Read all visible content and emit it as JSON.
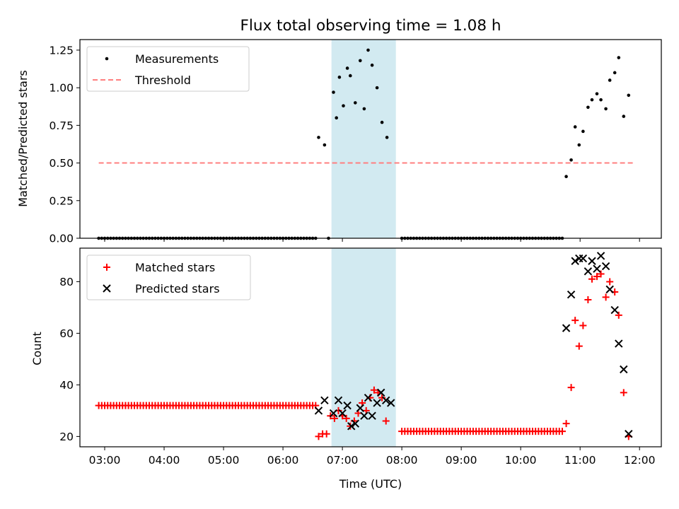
{
  "figure": {
    "title": "Flux total observing time = 1.08 h",
    "xlabel": "Time (UTC)",
    "x_ticks": [
      "03:00",
      "04:00",
      "05:00",
      "06:00",
      "07:00",
      "08:00",
      "09:00",
      "10:00",
      "11:00",
      "12:00"
    ],
    "highlight_color": "#add8e6"
  },
  "chart_data": [
    {
      "type": "scatter",
      "ylabel": "Matched/Predicted stars",
      "xlim": [
        "02:35",
        "12:22"
      ],
      "ylim": [
        0,
        1.32
      ],
      "y_ticks": [
        "0.00",
        "0.25",
        "0.50",
        "0.75",
        "1.00",
        "1.25"
      ],
      "shaded_interval": [
        "06:49",
        "07:54"
      ],
      "legend": {
        "location": "upper left",
        "entries": [
          "Measurements",
          "Threshold"
        ]
      },
      "threshold": {
        "name": "Threshold",
        "value": 0.5,
        "x_range": [
          "02:54",
          "11:54"
        ],
        "color": "#ff7f7f",
        "style": "dashed"
      },
      "series": [
        {
          "name": "Measurements",
          "color": "#000000",
          "marker": "dot",
          "zero_runs": [
            {
              "start": "02:54",
              "end": "06:33",
              "step_min": 3
            },
            {
              "start": "08:00",
              "end": "10:42",
              "step_min": 3
            }
          ],
          "points": [
            [
              "06:46",
              0.0
            ],
            [
              "06:36",
              0.67
            ],
            [
              "06:42",
              0.62
            ],
            [
              "06:51",
              0.97
            ],
            [
              "06:54",
              0.8
            ],
            [
              "06:57",
              1.07
            ],
            [
              "07:01",
              0.88
            ],
            [
              "07:05",
              1.13
            ],
            [
              "07:08",
              1.08
            ],
            [
              "07:13",
              0.9
            ],
            [
              "07:18",
              1.18
            ],
            [
              "07:22",
              0.86
            ],
            [
              "07:26",
              1.25
            ],
            [
              "07:30",
              1.15
            ],
            [
              "07:35",
              1.0
            ],
            [
              "07:40",
              0.77
            ],
            [
              "07:45",
              0.67
            ],
            [
              "10:46",
              0.41
            ],
            [
              "10:51",
              0.52
            ],
            [
              "10:55",
              0.74
            ],
            [
              "10:59",
              0.62
            ],
            [
              "11:03",
              0.71
            ],
            [
              "11:08",
              0.87
            ],
            [
              "11:12",
              0.92
            ],
            [
              "11:17",
              0.96
            ],
            [
              "11:21",
              0.92
            ],
            [
              "11:26",
              0.86
            ],
            [
              "11:30",
              1.05
            ],
            [
              "11:35",
              1.1
            ],
            [
              "11:39",
              1.2
            ],
            [
              "11:44",
              0.81
            ],
            [
              "11:49",
              0.95
            ]
          ]
        }
      ]
    },
    {
      "type": "scatter",
      "ylabel": "Count",
      "xlim": [
        "02:35",
        "12:22"
      ],
      "ylim": [
        16,
        93
      ],
      "y_ticks": [
        "20",
        "40",
        "60",
        "80"
      ],
      "shaded_interval": [
        "06:49",
        "07:54"
      ],
      "legend": {
        "location": "upper left",
        "entries": [
          "Matched stars",
          "Predicted stars"
        ]
      },
      "series": [
        {
          "name": "Matched stars",
          "color": "#ff0000",
          "marker": "plus",
          "runs": [
            {
              "start": "02:54",
              "end": "06:33",
              "step_min": 3,
              "value": 32
            },
            {
              "start": "08:00",
              "end": "10:42",
              "step_min": 3,
              "value": 22
            }
          ],
          "points": [
            [
              "06:36",
              20
            ],
            [
              "06:40",
              21
            ],
            [
              "06:44",
              21
            ],
            [
              "06:48",
              28
            ],
            [
              "06:52",
              27
            ],
            [
              "06:56",
              30
            ],
            [
              "07:00",
              28
            ],
            [
              "07:04",
              27
            ],
            [
              "07:08",
              24
            ],
            [
              "07:12",
              26
            ],
            [
              "07:16",
              29
            ],
            [
              "07:20",
              33
            ],
            [
              "07:24",
              30
            ],
            [
              "07:28",
              35
            ],
            [
              "07:32",
              38
            ],
            [
              "07:36",
              37
            ],
            [
              "07:40",
              35
            ],
            [
              "07:44",
              26
            ],
            [
              "10:46",
              25
            ],
            [
              "10:51",
              39
            ],
            [
              "10:55",
              65
            ],
            [
              "10:59",
              55
            ],
            [
              "11:03",
              63
            ],
            [
              "11:08",
              73
            ],
            [
              "11:12",
              81
            ],
            [
              "11:17",
              82
            ],
            [
              "11:21",
              83
            ],
            [
              "11:26",
              74
            ],
            [
              "11:30",
              80
            ],
            [
              "11:35",
              76
            ],
            [
              "11:39",
              67
            ],
            [
              "11:44",
              37
            ],
            [
              "11:49",
              20
            ]
          ]
        },
        {
          "name": "Predicted stars",
          "color": "#000000",
          "marker": "x",
          "points": [
            [
              "06:36",
              30
            ],
            [
              "06:42",
              34
            ],
            [
              "06:51",
              29
            ],
            [
              "06:56",
              34
            ],
            [
              "07:00",
              29
            ],
            [
              "07:05",
              32
            ],
            [
              "07:09",
              24
            ],
            [
              "07:13",
              25
            ],
            [
              "07:18",
              31
            ],
            [
              "07:22",
              28
            ],
            [
              "07:26",
              35
            ],
            [
              "07:30",
              28
            ],
            [
              "07:35",
              33
            ],
            [
              "07:39",
              37
            ],
            [
              "07:44",
              34
            ],
            [
              "07:49",
              33
            ],
            [
              "10:46",
              62
            ],
            [
              "10:51",
              75
            ],
            [
              "10:55",
              88
            ],
            [
              "10:59",
              89
            ],
            [
              "11:03",
              89
            ],
            [
              "11:08",
              84
            ],
            [
              "11:12",
              88
            ],
            [
              "11:17",
              85
            ],
            [
              "11:21",
              90
            ],
            [
              "11:26",
              86
            ],
            [
              "11:30",
              77
            ],
            [
              "11:35",
              69
            ],
            [
              "11:39",
              56
            ],
            [
              "11:44",
              46
            ],
            [
              "11:49",
              21
            ]
          ]
        }
      ]
    }
  ]
}
